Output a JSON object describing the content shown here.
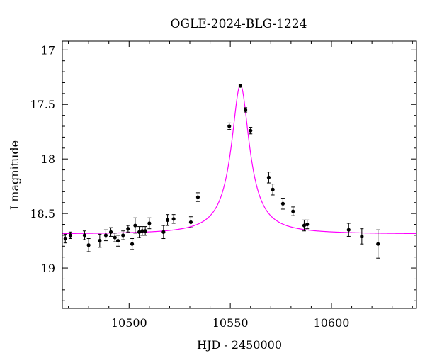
{
  "chart_data": {
    "type": "scatter",
    "title": "OGLE-2024-BLG-1224",
    "xlabel": "HJD - 2450000",
    "ylabel": "I magnitude",
    "xlim": [
      10467,
      10642
    ],
    "ylim": [
      19.37,
      16.92
    ],
    "y_inverted": true,
    "x_major_ticks": [
      10500,
      10550,
      10600
    ],
    "x_minor_step": 10,
    "y_major_ticks": [
      17,
      17.5,
      18,
      18.5,
      19
    ],
    "y_minor_step": 0.1,
    "x_tick_labels": [
      "10500",
      "10550",
      "10600"
    ],
    "y_tick_labels": [
      "17",
      "17.5",
      "18",
      "18.5",
      "19"
    ],
    "grid": false,
    "legend": "none",
    "colors": {
      "points": "#000000",
      "model": "#ff00ff"
    },
    "series": [
      {
        "kind": "observations",
        "x": [
          10468.5,
          10471,
          10478,
          10480,
          10485.5,
          10488.5,
          10491,
          10493,
          10494.5,
          10497,
          10499.5,
          10501.5,
          10503,
          10505,
          10506.5,
          10508,
          10510,
          10517,
          10519,
          10522,
          10530.5,
          10534,
          10549.5,
          10555,
          10557.5,
          10560,
          10569,
          10571,
          10576,
          10581,
          10586.5,
          10588,
          10608.5,
          10615,
          10623
        ],
        "y": [
          18.73,
          18.7,
          18.7,
          18.79,
          18.75,
          18.7,
          18.67,
          18.72,
          18.75,
          18.7,
          18.64,
          18.78,
          18.61,
          18.67,
          18.66,
          18.66,
          18.59,
          18.67,
          18.56,
          18.55,
          18.58,
          18.35,
          17.7,
          17.33,
          17.55,
          17.74,
          18.17,
          18.28,
          18.41,
          18.48,
          18.61,
          18.6,
          18.65,
          18.71,
          18.78
        ],
        "err": [
          0.04,
          0.03,
          0.04,
          0.06,
          0.06,
          0.05,
          0.04,
          0.04,
          0.05,
          0.04,
          0.03,
          0.05,
          0.07,
          0.05,
          0.04,
          0.04,
          0.05,
          0.06,
          0.05,
          0.04,
          0.05,
          0.04,
          0.03,
          0.01,
          0.02,
          0.03,
          0.05,
          0.05,
          0.05,
          0.04,
          0.05,
          0.04,
          0.06,
          0.07,
          0.13
        ]
      },
      {
        "kind": "model",
        "t0": 10555,
        "baseline": 18.69,
        "peak": 17.32,
        "width": 4.0,
        "x_range": [
          10467,
          10642
        ]
      }
    ]
  }
}
